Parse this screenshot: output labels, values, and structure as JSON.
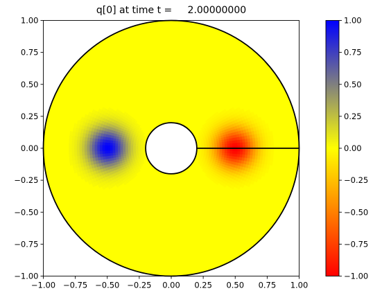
{
  "chart_data": {
    "type": "heatmap",
    "title": "q[0] at time t =     2.00000000",
    "xlabel": "",
    "ylabel": "",
    "xlim": [
      -1.0,
      1.0
    ],
    "ylim": [
      -1.0,
      1.0
    ],
    "x_ticks": [
      "−1.00",
      "−0.75",
      "−0.50",
      "−0.25",
      "0.00",
      "0.25",
      "0.50",
      "0.75",
      "1.00"
    ],
    "x_tick_values": [
      -1.0,
      -0.75,
      -0.5,
      -0.25,
      0.0,
      0.25,
      0.5,
      0.75,
      1.0
    ],
    "y_ticks": [
      "−1.00",
      "−0.75",
      "−0.50",
      "−0.25",
      "0.00",
      "0.25",
      "0.50",
      "0.75",
      "1.00"
    ],
    "y_tick_values": [
      -1.0,
      -0.75,
      -0.5,
      -0.25,
      0.0,
      0.25,
      0.5,
      0.75,
      1.0
    ],
    "domain": {
      "shape": "annulus",
      "outer_radius": 1.0,
      "inner_radius": 0.2,
      "cut_line": {
        "from": [
          0.2,
          0.0
        ],
        "to": [
          1.0,
          0.0
        ]
      }
    },
    "blobs": [
      {
        "center": [
          -0.5,
          0.0
        ],
        "peak": 1.0,
        "spread": 0.11
      },
      {
        "center": [
          0.5,
          0.0
        ],
        "peak": -1.0,
        "spread": 0.11
      }
    ],
    "background_value": 0.0,
    "grid": false,
    "colorbar": {
      "range": [
        -1.0,
        1.0
      ],
      "ticks": [
        "1.00",
        "0.75",
        "0.50",
        "0.25",
        "0.00",
        "−0.25",
        "−0.50",
        "−0.75",
        "−1.00"
      ],
      "tick_values": [
        1.0,
        0.75,
        0.5,
        0.25,
        0.0,
        -0.25,
        -0.5,
        -0.75,
        -1.0
      ],
      "colormap": {
        "low": "#ff0000",
        "mid": "#ffff00",
        "high": "#0000ff"
      }
    }
  }
}
